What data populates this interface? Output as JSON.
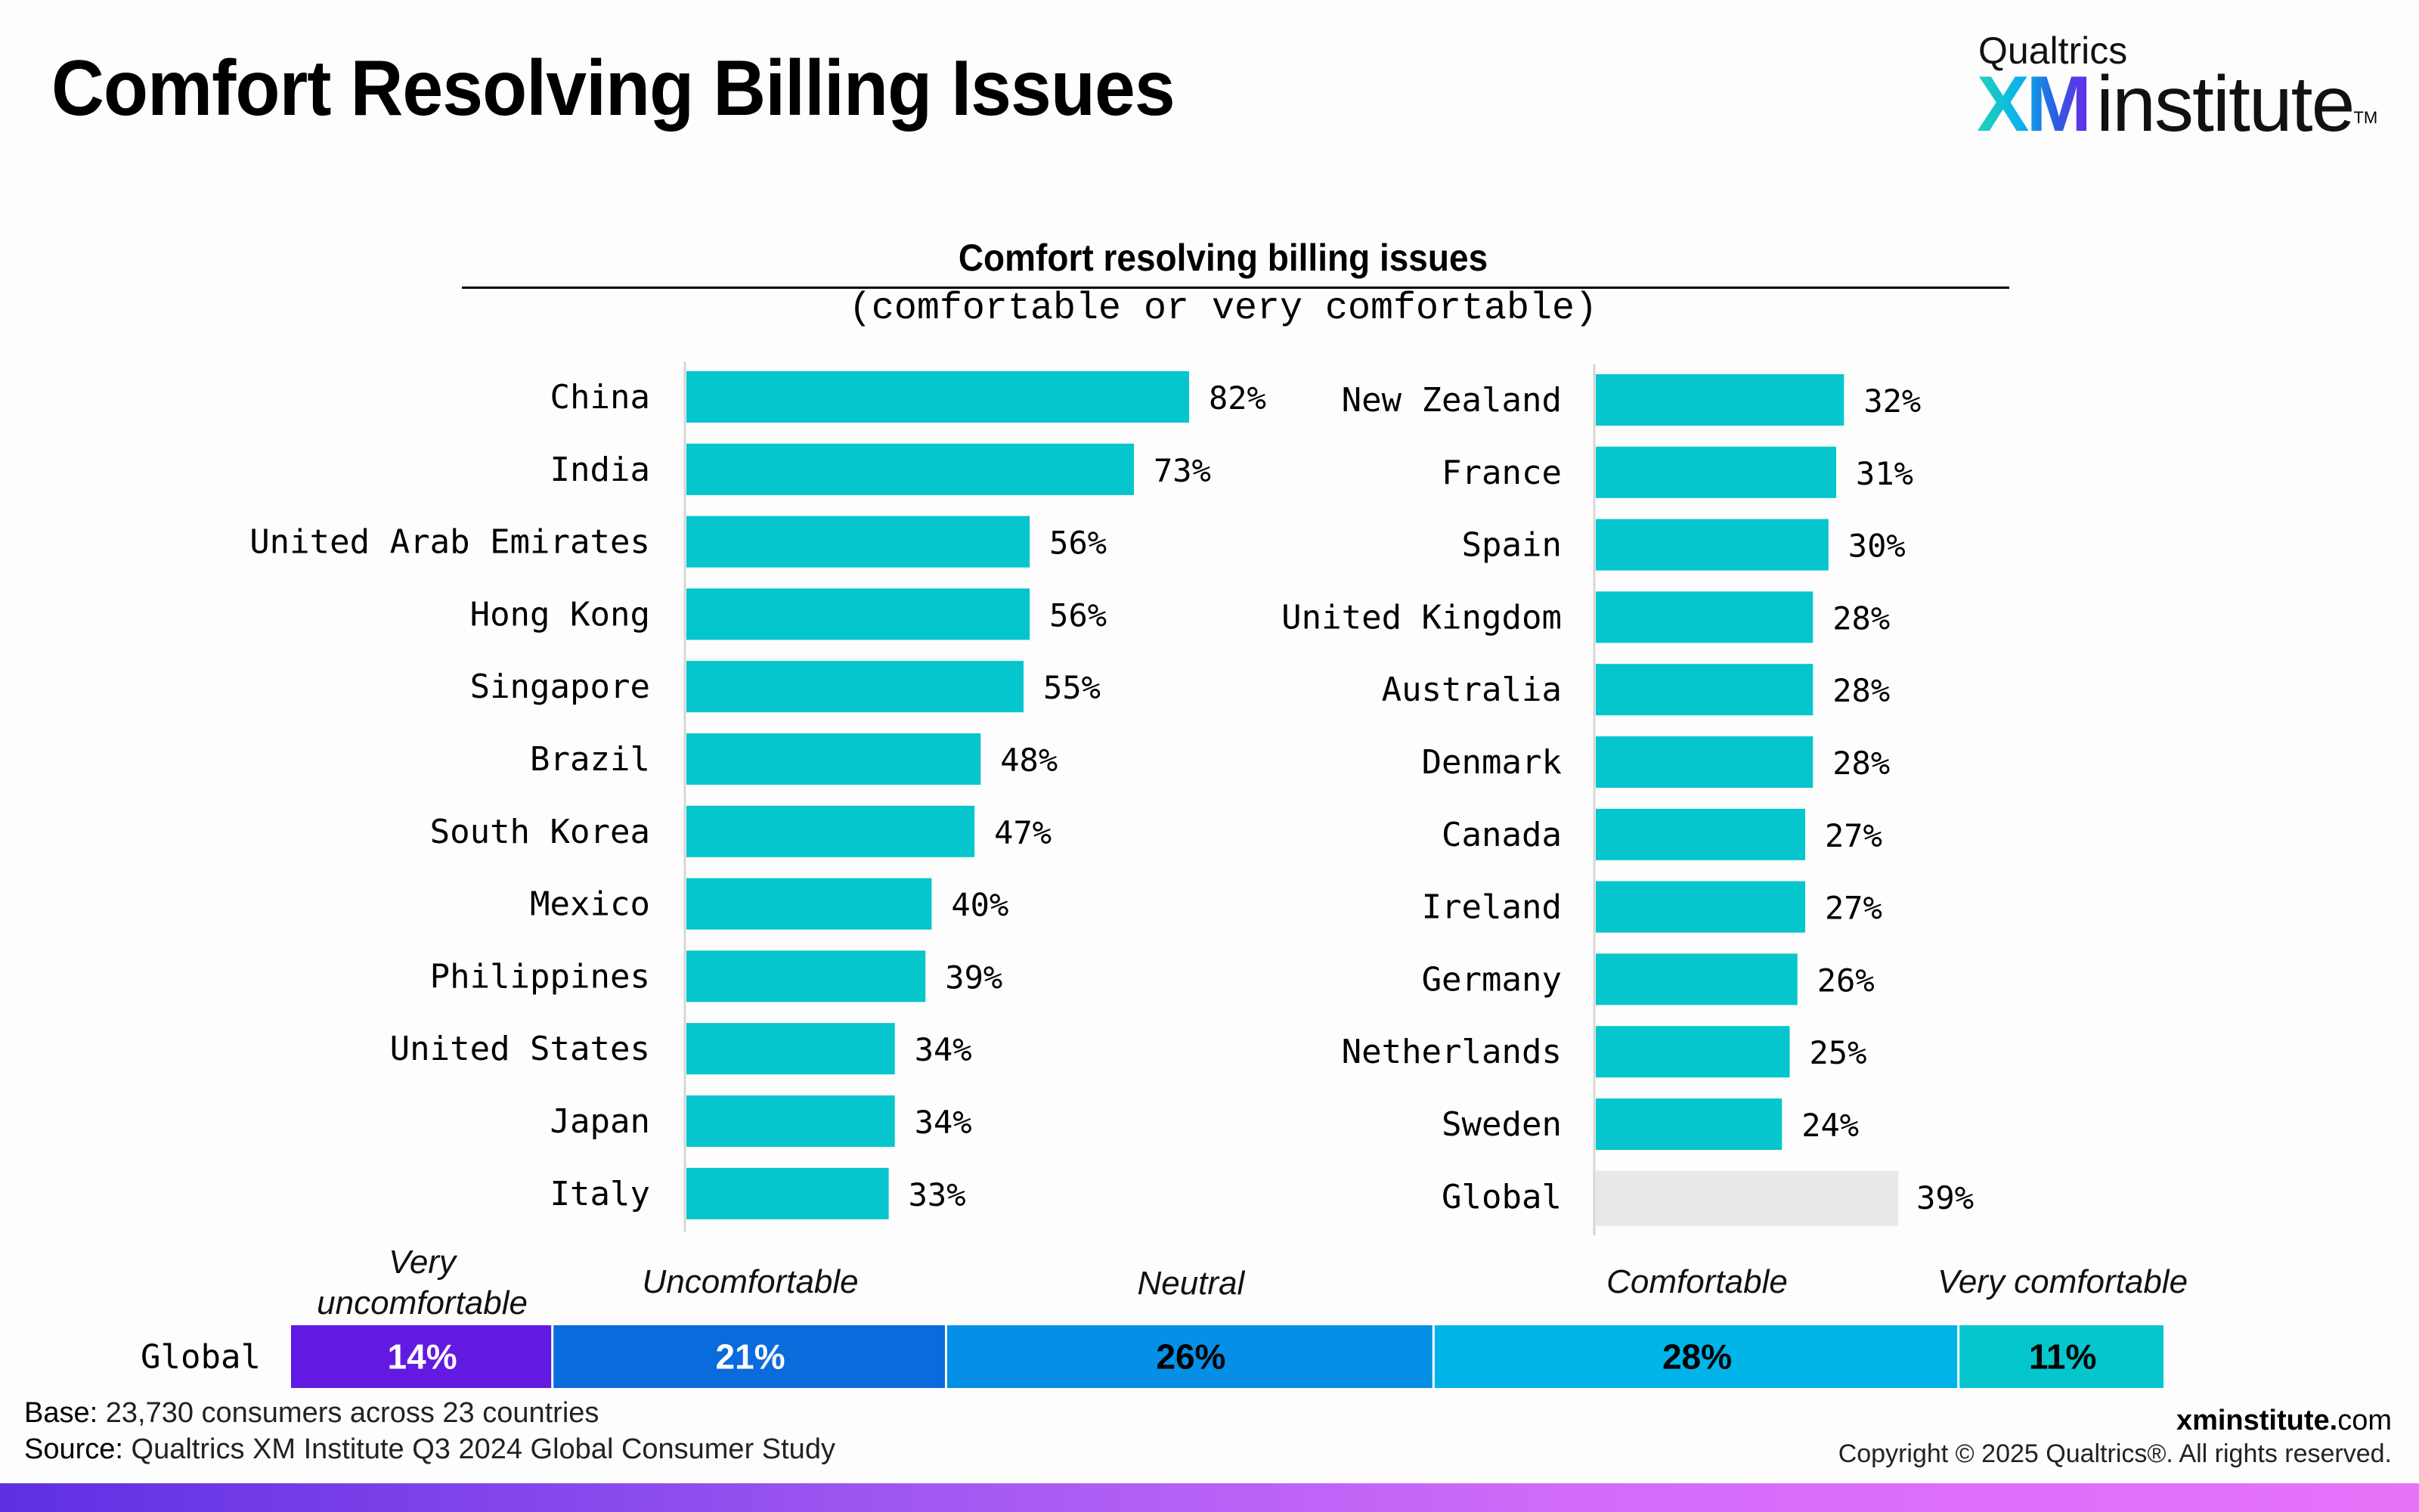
{
  "header": {
    "title": "Comfort Resolving Billing Issues",
    "logo": {
      "top": "Qualtrics",
      "xm": "XM",
      "institute": "institute",
      "tm": "TM"
    }
  },
  "chart_data": [
    {
      "type": "bar",
      "orientation": "horizontal",
      "title": "Comfort resolving billing issues",
      "subtitle": "(comfortable or very comfortable)",
      "panel": "left",
      "categories": [
        "China",
        "India",
        "United Arab Emirates",
        "Hong Kong",
        "Singapore",
        "Brazil",
        "South Korea",
        "Mexico",
        "Philippines",
        "United States",
        "Japan",
        "Italy"
      ],
      "values": [
        82,
        73,
        56,
        56,
        55,
        48,
        47,
        40,
        39,
        34,
        34,
        33
      ],
      "labels": [
        "82%",
        "73%",
        "56%",
        "56%",
        "55%",
        "48%",
        "47%",
        "40%",
        "39%",
        "34%",
        "34%",
        "33%"
      ],
      "value_unit": "%",
      "bar_color": "#05c6cc"
    },
    {
      "type": "bar",
      "orientation": "horizontal",
      "panel": "right",
      "categories": [
        "New Zealand",
        "France",
        "Spain",
        "United Kingdom",
        "Australia",
        "Denmark",
        "Canada",
        "Ireland",
        "Germany",
        "Netherlands",
        "Sweden",
        "Global"
      ],
      "values": [
        32,
        31,
        30,
        28,
        28,
        28,
        27,
        27,
        26,
        25,
        24,
        39
      ],
      "labels": [
        "32%",
        "31%",
        "30%",
        "28%",
        "28%",
        "28%",
        "27%",
        "27%",
        "26%",
        "25%",
        "24%",
        "39%"
      ],
      "value_unit": "%",
      "bar_color": "#05c6cc",
      "highlight": {
        "category": "Global",
        "color": "#e8e8e8"
      }
    },
    {
      "type": "bar",
      "orientation": "horizontal",
      "stacked": true,
      "categories": [
        "Global"
      ],
      "series": [
        {
          "name": "Very uncomfortable",
          "values": [
            14
          ],
          "label": "14%",
          "color": "#621ae3",
          "text_color": "#ffffff"
        },
        {
          "name": "Uncomfortable",
          "values": [
            21
          ],
          "label": "21%",
          "color": "#0a6bdd",
          "text_color": "#ffffff"
        },
        {
          "name": "Neutral",
          "values": [
            26
          ],
          "label": "26%",
          "color": "#058fe6",
          "text_color": "#000000"
        },
        {
          "name": "Comfortable",
          "values": [
            28
          ],
          "label": "28%",
          "color": "#00b4ea",
          "text_color": "#000000"
        },
        {
          "name": "Very comfortable",
          "values": [
            11
          ],
          "label": "11%",
          "color": "#05c6cc",
          "text_color": "#000000"
        }
      ]
    }
  ],
  "footer": {
    "base_label": "Base:",
    "base_text": " 23,730 consumers across 23 countries",
    "source_label": "Source:",
    "source_text": " Qualtrics XM Institute Q3 2024 Global Consumer Study",
    "site_bold": "xminstitute.",
    "site_rest": "com",
    "copyright": "Copyright © 2025 Qualtrics®. All rights reserved."
  }
}
